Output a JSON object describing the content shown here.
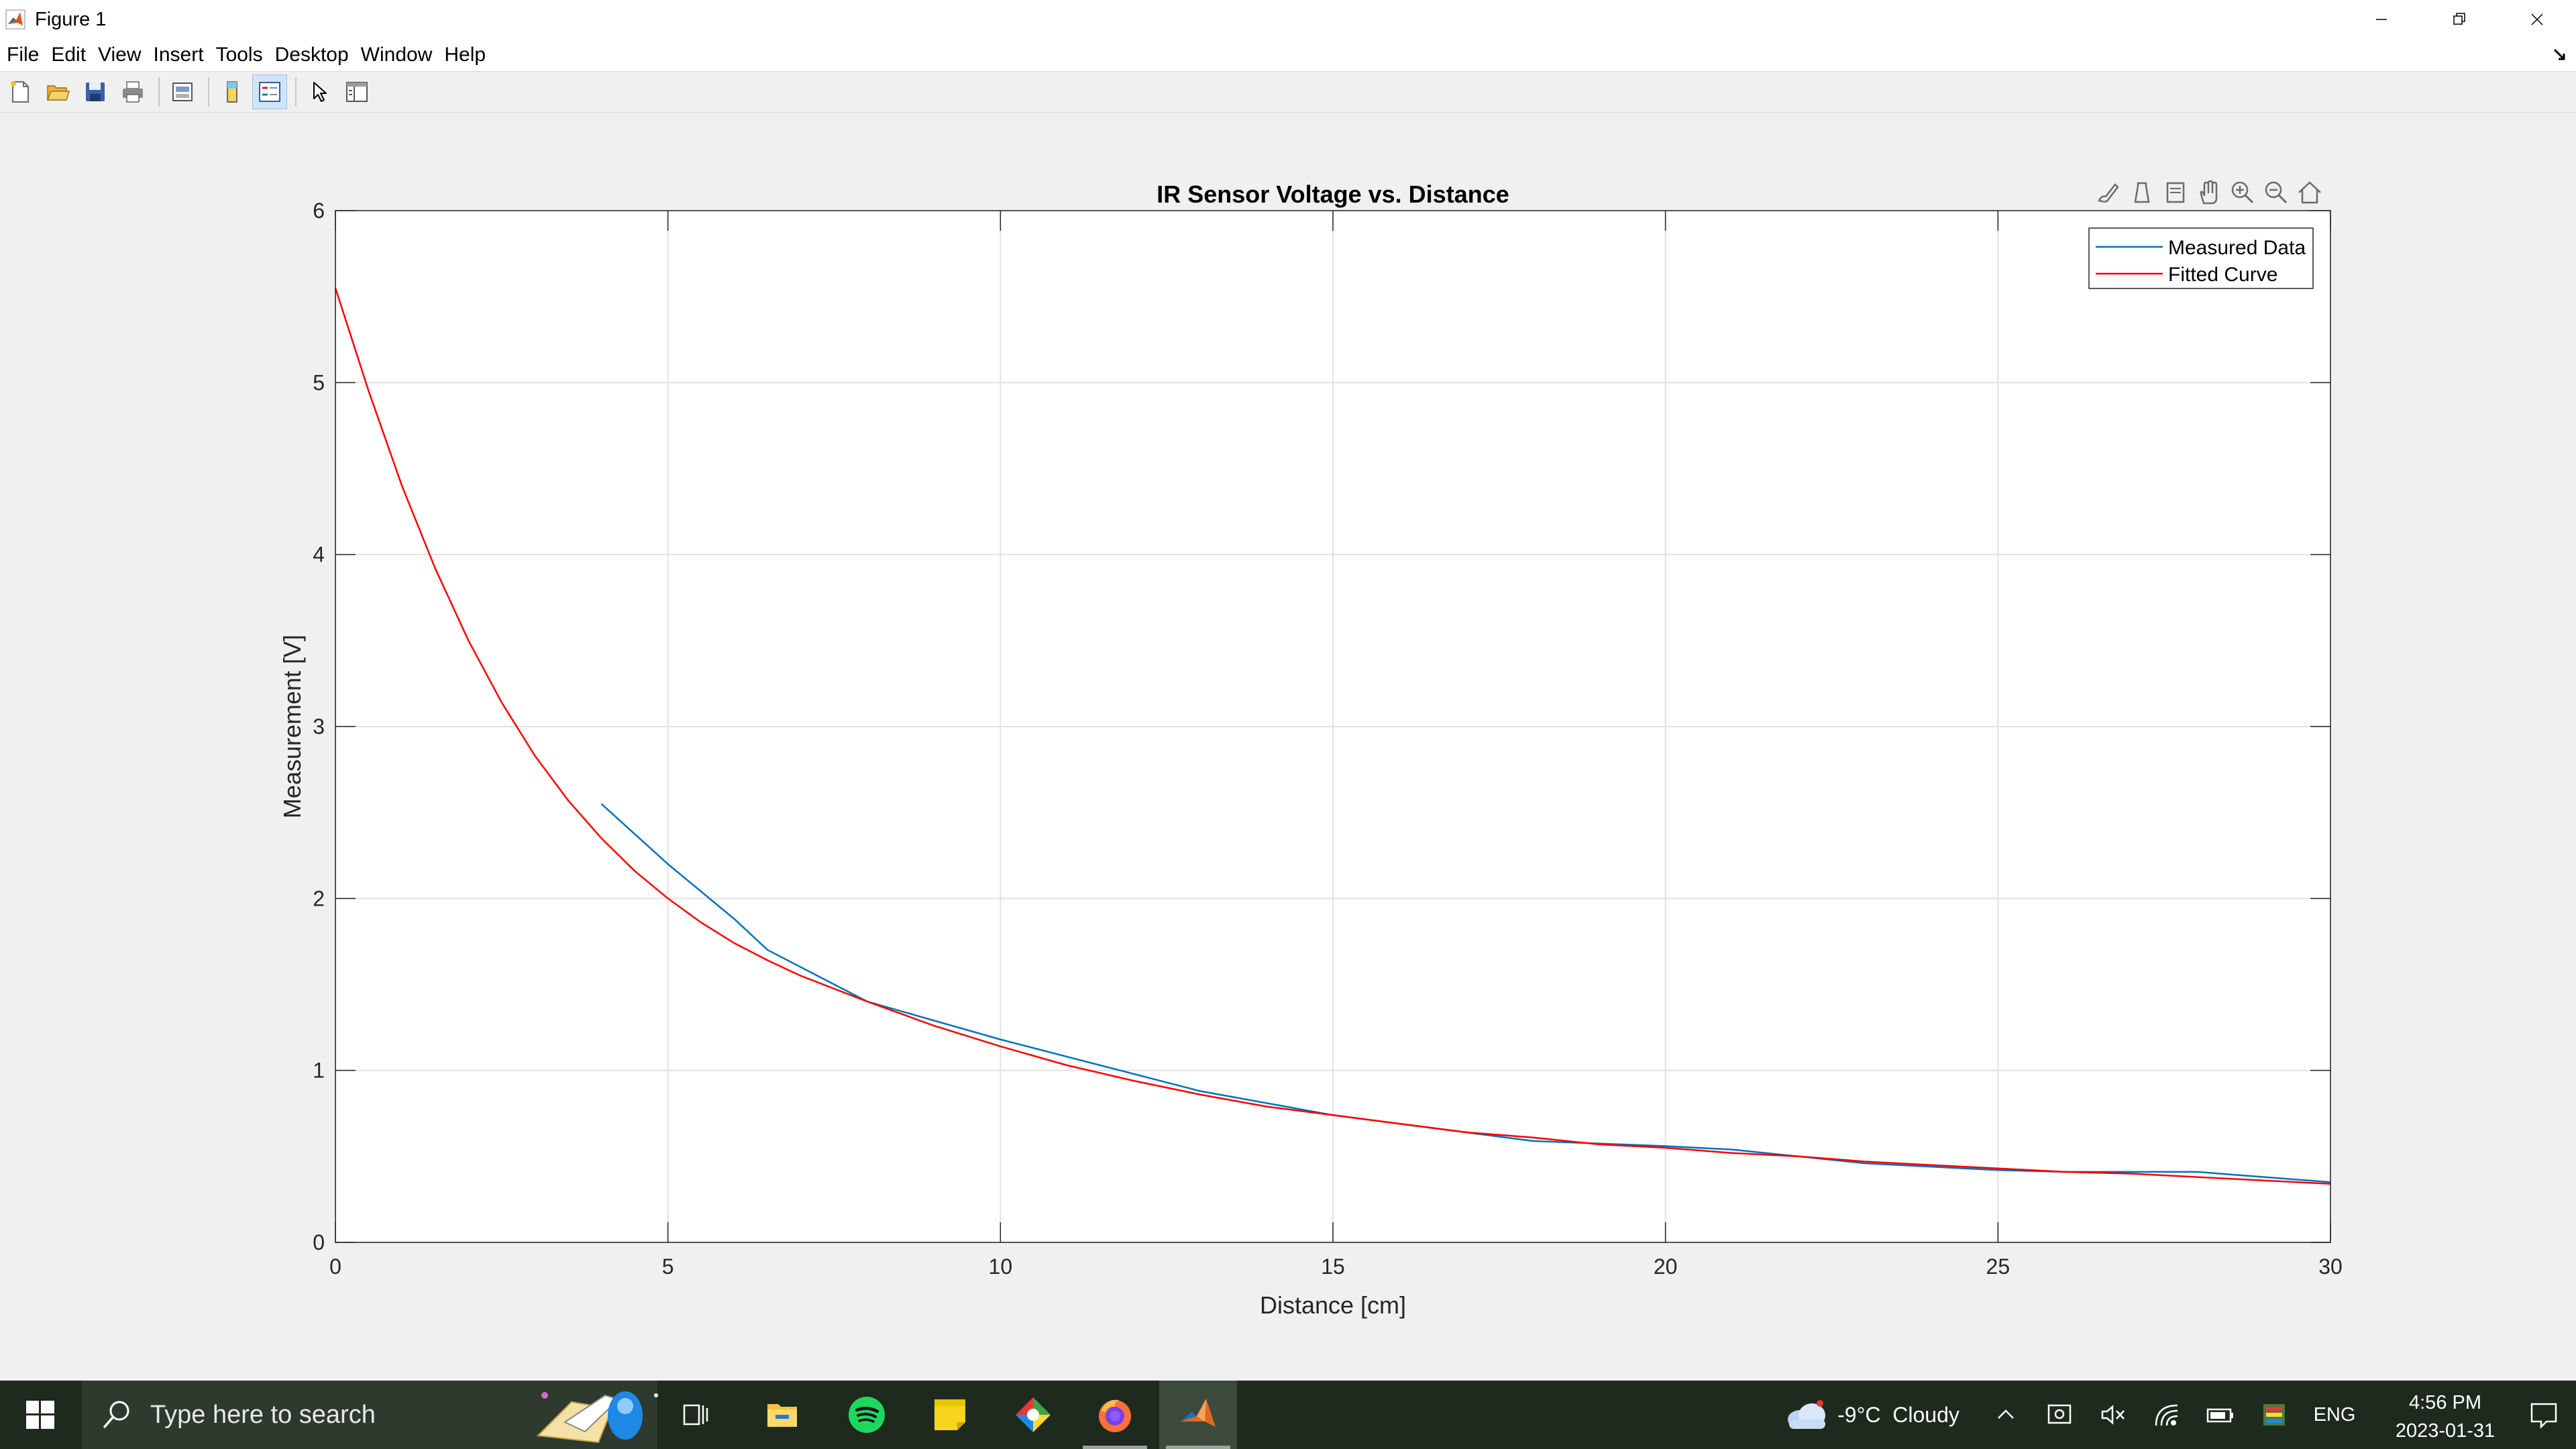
{
  "window": {
    "title": "Figure 1",
    "controls": [
      "minimize-icon",
      "restore-icon",
      "close-icon"
    ]
  },
  "menu": {
    "items": [
      "File",
      "Edit",
      "View",
      "Insert",
      "Tools",
      "Desktop",
      "Window",
      "Help"
    ]
  },
  "toolbar": {
    "buttons": [
      "new-figure-icon",
      "open-file-icon",
      "save-icon",
      "print-icon",
      "link-plot-icon",
      "colorbar-icon",
      "legend-icon",
      "edit-plot-icon",
      "property-inspector-icon"
    ],
    "selected": "legend-icon"
  },
  "axes_toolbar": {
    "buttons": [
      "brush-icon",
      "data-tips-icon",
      "rotate-icon",
      "pan-icon",
      "zoom-in-icon",
      "zoom-out-icon",
      "home-icon"
    ]
  },
  "chart_data": {
    "type": "line",
    "title": "IR Sensor Voltage vs. Distance",
    "xlabel": "Distance [cm]",
    "ylabel": "Measurement [V]",
    "xlim": [
      0,
      30
    ],
    "ylim": [
      0,
      6
    ],
    "xticks": [
      "0",
      "5",
      "10",
      "15",
      "20",
      "25",
      "30"
    ],
    "yticks": [
      "0",
      "1",
      "2",
      "3",
      "4",
      "5",
      "6"
    ],
    "grid": true,
    "legend_position": "top-right",
    "series": [
      {
        "name": "Measured Data",
        "color": "#0072BD",
        "x": [
          4,
          5,
          6,
          6.5,
          8,
          10,
          11,
          13,
          15,
          18,
          20,
          21,
          23,
          25,
          26,
          28,
          30
        ],
        "y": [
          2.55,
          2.2,
          1.88,
          1.7,
          1.4,
          1.18,
          1.08,
          0.88,
          0.74,
          0.59,
          0.56,
          0.54,
          0.46,
          0.42,
          0.41,
          0.41,
          0.35
        ]
      },
      {
        "name": "Fitted Curve",
        "color": "#ff0000",
        "x": [
          0,
          0.5,
          1,
          1.5,
          2,
          2.5,
          3,
          3.5,
          4,
          4.5,
          5,
          5.5,
          6,
          6.5,
          7,
          8,
          9,
          10,
          11,
          12,
          13,
          14,
          15,
          16,
          17,
          18,
          19,
          20,
          21,
          22,
          23,
          24,
          25,
          26,
          27,
          28,
          29,
          30
        ],
        "y": [
          5.55,
          4.95,
          4.4,
          3.92,
          3.5,
          3.14,
          2.83,
          2.57,
          2.35,
          2.16,
          2.0,
          1.86,
          1.74,
          1.64,
          1.55,
          1.4,
          1.26,
          1.14,
          1.03,
          0.94,
          0.86,
          0.79,
          0.74,
          0.69,
          0.64,
          0.61,
          0.57,
          0.55,
          0.52,
          0.5,
          0.47,
          0.45,
          0.43,
          0.41,
          0.4,
          0.38,
          0.36,
          0.34
        ]
      }
    ]
  },
  "taskbar": {
    "search_placeholder": "Type here to search",
    "apps": [
      "task-view-icon",
      "file-explorer-icon",
      "spotify-icon",
      "sticky-notes-icon",
      "snipping-tool-icon",
      "firefox-icon",
      "matlab-icon"
    ],
    "active_app": "matlab-icon",
    "weather": "-9°C  Cloudy",
    "language": "ENG",
    "time": "4:56 PM",
    "date": "2023-01-31"
  }
}
